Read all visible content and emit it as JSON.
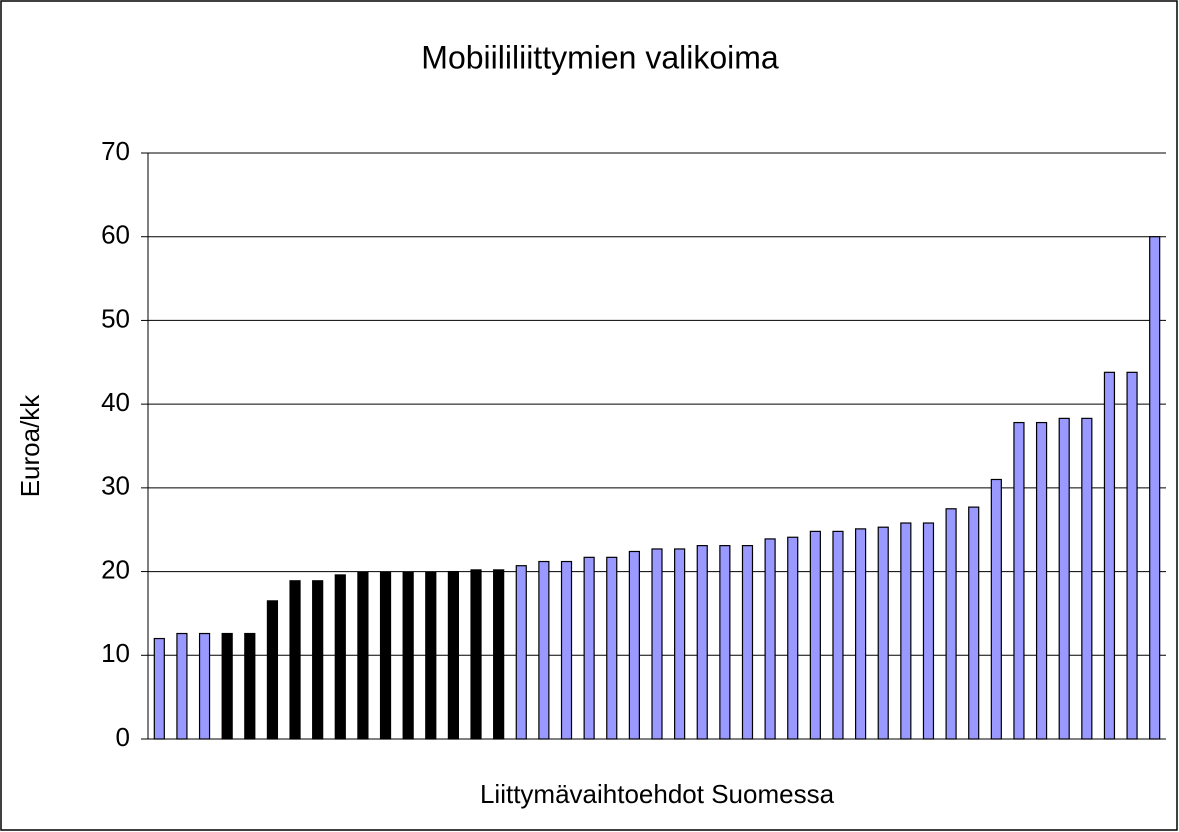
{
  "chart_data": {
    "type": "bar",
    "title": "Mobiililiittymien valikoima",
    "xlabel": "Liittymävaihtoehdot Suomessa",
    "ylabel": "Euroa/kk",
    "categories": [
      null,
      null,
      null,
      null,
      null,
      null,
      null,
      null,
      null,
      null,
      null,
      null,
      null,
      null,
      null,
      null,
      null,
      null,
      null,
      null,
      null,
      null,
      null,
      null,
      null,
      null,
      null,
      null,
      null,
      null,
      null,
      null,
      null,
      null,
      null,
      null,
      null,
      null,
      null,
      null,
      null,
      null,
      null,
      null,
      null
    ],
    "values": [
      12.0,
      12.6,
      12.6,
      12.6,
      12.6,
      16.5,
      18.9,
      18.9,
      19.6,
      19.9,
      19.9,
      19.9,
      19.9,
      20.0,
      20.2,
      20.2,
      20.7,
      21.2,
      21.2,
      21.7,
      21.7,
      22.4,
      22.7,
      22.7,
      23.1,
      23.1,
      23.1,
      23.9,
      24.1,
      24.8,
      24.8,
      25.1,
      25.3,
      25.8,
      25.8,
      27.5,
      27.7,
      31.0,
      37.8,
      37.8,
      38.3,
      38.3,
      43.8,
      43.8,
      60.0
    ],
    "colors": [
      "#9999ff",
      "#9999ff",
      "#9999ff",
      "#000000",
      "#000000",
      "#000000",
      "#000000",
      "#000000",
      "#000000",
      "#000000",
      "#000000",
      "#000000",
      "#000000",
      "#000000",
      "#000000",
      "#000000",
      "#9999ff",
      "#9999ff",
      "#9999ff",
      "#9999ff",
      "#9999ff",
      "#9999ff",
      "#9999ff",
      "#9999ff",
      "#9999ff",
      "#9999ff",
      "#9999ff",
      "#9999ff",
      "#9999ff",
      "#9999ff",
      "#9999ff",
      "#9999ff",
      "#9999ff",
      "#9999ff",
      "#9999ff",
      "#9999ff",
      "#9999ff",
      "#9999ff",
      "#9999ff",
      "#9999ff",
      "#9999ff",
      "#9999ff",
      "#9999ff",
      "#9999ff",
      "#9999ff"
    ],
    "ylim": [
      0,
      70
    ],
    "yticks": [
      0,
      10,
      20,
      30,
      40,
      50,
      60,
      70
    ],
    "grid": true
  }
}
